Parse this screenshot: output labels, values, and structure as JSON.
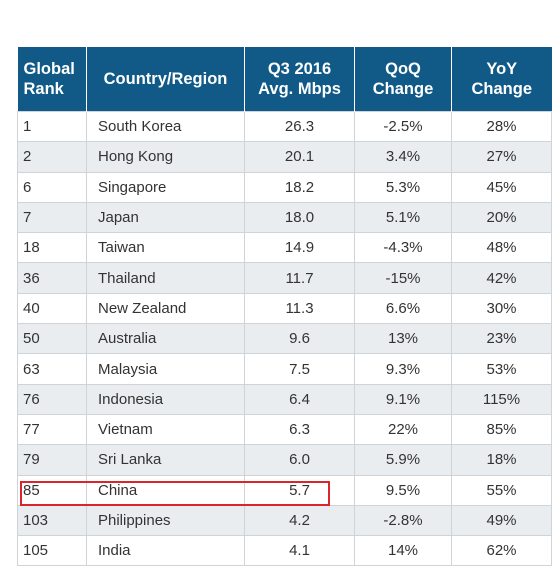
{
  "table": {
    "headers": {
      "rank": [
        "Global",
        "Rank"
      ],
      "country": [
        "Country/Region"
      ],
      "speed": [
        "Q3 2016",
        "Avg. Mbps"
      ],
      "qoq": [
        "QoQ",
        "Change"
      ],
      "yoy": [
        "YoY",
        "Change"
      ]
    },
    "rows": [
      {
        "rank": "1",
        "country": "South Korea",
        "speed": "26.3",
        "qoq": "-2.5%",
        "yoy": "28%"
      },
      {
        "rank": "2",
        "country": "Hong Kong",
        "speed": "20.1",
        "qoq": "3.4%",
        "yoy": "27%"
      },
      {
        "rank": "6",
        "country": "Singapore",
        "speed": "18.2",
        "qoq": "5.3%",
        "yoy": "45%"
      },
      {
        "rank": "7",
        "country": "Japan",
        "speed": "18.0",
        "qoq": "5.1%",
        "yoy": "20%"
      },
      {
        "rank": "18",
        "country": "Taiwan",
        "speed": "14.9",
        "qoq": "-4.3%",
        "yoy": "48%"
      },
      {
        "rank": "36",
        "country": "Thailand",
        "speed": "11.7",
        "qoq": "-15%",
        "yoy": "42%"
      },
      {
        "rank": "40",
        "country": "New Zealand",
        "speed": "11.3",
        "qoq": "6.6%",
        "yoy": "30%"
      },
      {
        "rank": "50",
        "country": "Australia",
        "speed": "9.6",
        "qoq": "13%",
        "yoy": "23%"
      },
      {
        "rank": "63",
        "country": "Malaysia",
        "speed": "7.5",
        "qoq": "9.3%",
        "yoy": "53%"
      },
      {
        "rank": "76",
        "country": "Indonesia",
        "speed": "6.4",
        "qoq": "9.1%",
        "yoy": "115%"
      },
      {
        "rank": "77",
        "country": "Vietnam",
        "speed": "6.3",
        "qoq": "22%",
        "yoy": "85%"
      },
      {
        "rank": "79",
        "country": "Sri Lanka",
        "speed": "6.0",
        "qoq": "5.9%",
        "yoy": "18%"
      },
      {
        "rank": "85",
        "country": "China",
        "speed": "5.7",
        "qoq": "9.5%",
        "yoy": "55%"
      },
      {
        "rank": "103",
        "country": "Philippines",
        "speed": "4.2",
        "qoq": "-2.8%",
        "yoy": "49%"
      },
      {
        "rank": "105",
        "country": "India",
        "speed": "4.1",
        "qoq": "14%",
        "yoy": "62%"
      }
    ],
    "highlighted_row_country": "China"
  },
  "colors": {
    "header_bg": "#115a88",
    "header_text": "#ffffff",
    "row_alt_bg": "#eaedf0",
    "highlight_border": "#d9262a"
  }
}
